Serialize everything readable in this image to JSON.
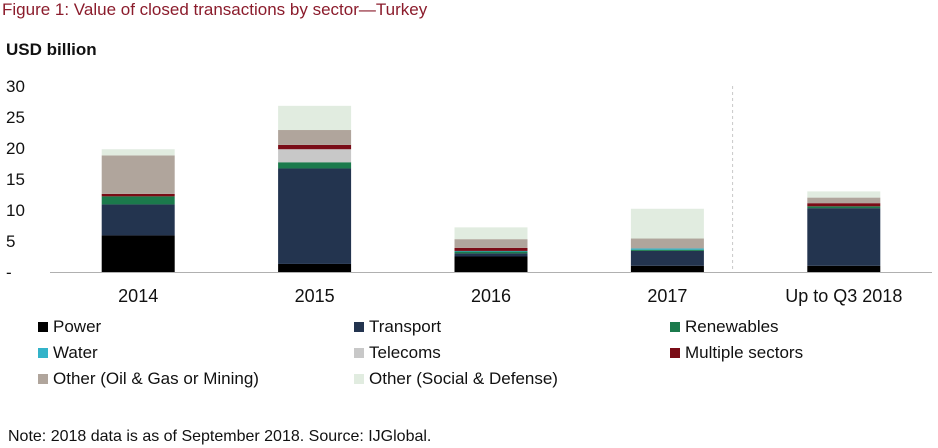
{
  "figure_title": "Figure 1: Value of closed transactions by sector—Turkey",
  "note": "Note: 2018 data is as of September 2018. Source: IJGlobal.",
  "chart_data": {
    "type": "bar",
    "stacked": true,
    "title": "",
    "ylabel": "USD billion",
    "xlabel": "",
    "ylim": [
      0,
      30
    ],
    "yticks": [
      0,
      5,
      10,
      15,
      20,
      25,
      30
    ],
    "ytick_labels": [
      "-",
      "5",
      "10",
      "15",
      "20",
      "25",
      "30"
    ],
    "grid": false,
    "legend_position": "bottom",
    "categories": [
      "2014",
      "2015",
      "2016",
      "2017",
      "Up to Q3 2018"
    ],
    "series": [
      {
        "name": "Power",
        "color": "#000000",
        "values": [
          5.9,
          1.3,
          2.5,
          1.0,
          1.0
        ]
      },
      {
        "name": "Transport",
        "color": "#23344f",
        "values": [
          5.0,
          15.4,
          0.5,
          2.4,
          9.3
        ]
      },
      {
        "name": "Renewables",
        "color": "#1b7a4c",
        "values": [
          1.3,
          1.0,
          0.3,
          0.2,
          0.3
        ]
      },
      {
        "name": "Water",
        "color": "#33b3c9",
        "values": [
          0.0,
          0.0,
          0.1,
          0.2,
          0.0
        ]
      },
      {
        "name": "Telecoms",
        "color": "#c8c8c8",
        "values": [
          0.0,
          2.1,
          0.0,
          0.0,
          0.0
        ]
      },
      {
        "name": "Multiple sectors",
        "color": "#7a0c16",
        "values": [
          0.4,
          0.7,
          0.5,
          0.0,
          0.5
        ]
      },
      {
        "name": "Other (Oil & Gas or Mining)",
        "color": "#b0a59c",
        "values": [
          6.2,
          2.4,
          1.4,
          1.6,
          0.9
        ]
      },
      {
        "name": "Other (Social & Defense)",
        "color": "#e1ece0",
        "values": [
          1.0,
          3.9,
          1.9,
          4.8,
          1.0
        ]
      }
    ],
    "separator_before_category_index": 4
  }
}
